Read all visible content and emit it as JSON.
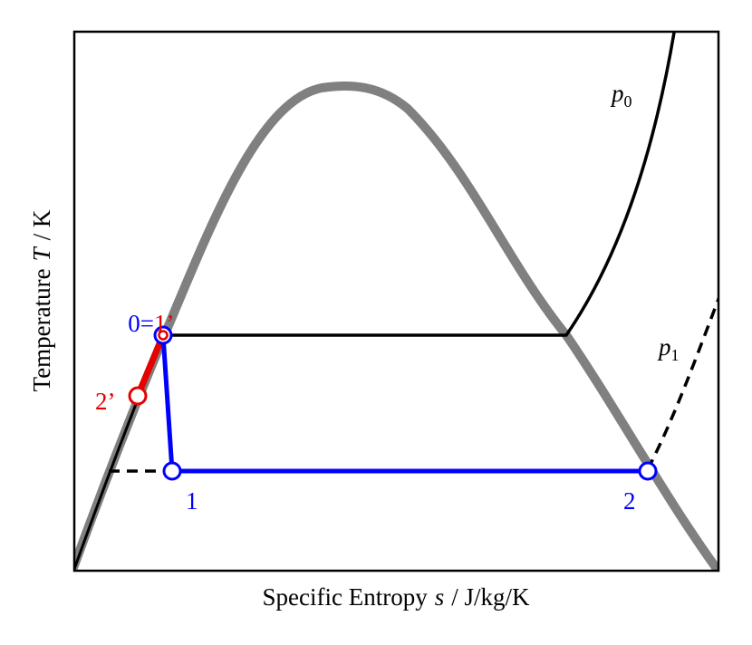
{
  "x_axis_label": {
    "prefix": "Specific Entropy",
    "symbol": "s",
    "unit": "/ J/kg/K"
  },
  "y_axis_label": {
    "prefix": "Temperature",
    "symbol": "T",
    "unit": "/ K"
  },
  "isobars": [
    {
      "symbol": "p",
      "subscript": "0"
    },
    {
      "symbol": "p",
      "subscript": "1"
    }
  ],
  "states": {
    "start": "0=",
    "start_prime": "1’",
    "point_2_prime": "2’",
    "point_1": "1",
    "point_2": "2"
  }
}
